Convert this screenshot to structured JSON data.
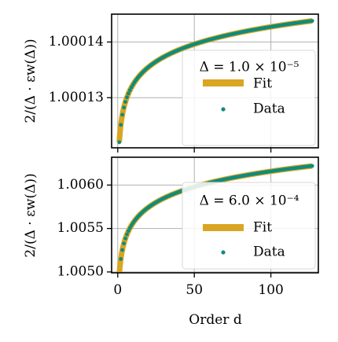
{
  "chart_data": [
    {
      "type": "line",
      "title": "",
      "xlabel": "",
      "ylabel": "2/(Δ · εw(Δ))",
      "xlim": [
        -4,
        131
      ],
      "ylim": [
        1.000121,
        1.000145
      ],
      "xticks": [
        0,
        50,
        100
      ],
      "xtick_labels": [
        "",
        "",
        ""
      ],
      "yticks": [
        1.00013,
        1.00014
      ],
      "ytick_labels": [
        "1.00013",
        "1.00014"
      ],
      "grid": true,
      "legend_placement": "lower-right",
      "legend_title": "Δ = 1.0 × 10⁻⁵",
      "curve": {
        "y_at_1": 1.000122,
        "y_at_127": 1.0001438
      },
      "series": [
        {
          "name": "Fit",
          "kind": "line",
          "color": "#DAA520",
          "x_range": [
            1,
            127
          ]
        },
        {
          "name": "Data",
          "kind": "scatter",
          "color": "#0E8C7C",
          "x_range": [
            1,
            127
          ]
        }
      ]
    },
    {
      "type": "line",
      "title": "",
      "xlabel": "Order d",
      "ylabel": "2/(Δ · εw(Δ))",
      "xlim": [
        -4,
        131
      ],
      "ylim": [
        1.00499,
        1.00632
      ],
      "xticks": [
        0,
        50,
        100
      ],
      "xtick_labels": [
        "0",
        "50",
        "100"
      ],
      "yticks": [
        1.005,
        1.0055,
        1.006
      ],
      "ytick_labels": [
        "1.0050",
        "1.0055",
        "1.0060"
      ],
      "grid": true,
      "legend_placement": "lower-right",
      "legend_title": "Δ = 6.0 × 10⁻⁴",
      "curve": {
        "y_at_1": 1.00497,
        "y_at_127": 1.00622
      },
      "series": [
        {
          "name": "Fit",
          "kind": "line",
          "color": "#DAA520",
          "x_range": [
            1,
            127
          ]
        },
        {
          "name": "Data",
          "kind": "scatter",
          "color": "#0E8C7C",
          "x_range": [
            1,
            127
          ]
        }
      ]
    }
  ]
}
